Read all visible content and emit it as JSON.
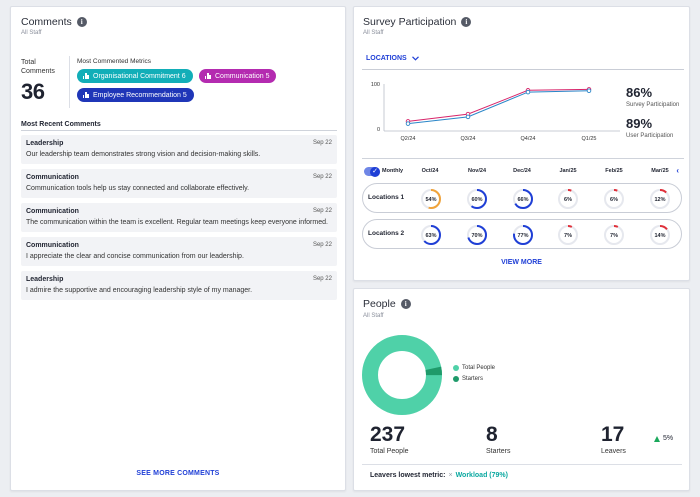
{
  "comments": {
    "title": "Comments",
    "subtitle": "All Staff",
    "total_label": "Total Comments",
    "total": "36",
    "most_commented_label": "Most Commented Metrics",
    "metrics": [
      {
        "label": "Organisational Commitment 6",
        "color": "#12aeb8"
      },
      {
        "label": "Communication 5",
        "color": "#b42bb0"
      },
      {
        "label": "Employee Recommendation 5",
        "color": "#1f36b8"
      }
    ],
    "recent_label": "Most Recent Comments",
    "items": [
      {
        "title": "Leadership",
        "date": "Sep 22",
        "text": "Our leadership team demonstrates strong vision and decision-making skills."
      },
      {
        "title": "Communication",
        "date": "Sep 22",
        "text": "Communication tools help us stay connected and collaborate effectively."
      },
      {
        "title": "Communication",
        "date": "Sep 22",
        "text": "The communication within the team is excellent. Regular team meetings keep everyone informed."
      },
      {
        "title": "Communication",
        "date": "Sep 22",
        "text": "I appreciate the clear and concise communication from our leadership."
      },
      {
        "title": "Leadership",
        "date": "Sep 22",
        "text": "I admire the supportive and encouraging leadership style of my manager."
      }
    ],
    "see_more": "SEE MORE COMMENTS"
  },
  "survey": {
    "title": "Survey Participation",
    "subtitle": "All Staff",
    "locations_label": "LOCATIONS",
    "chart": {
      "quarters": [
        "Q2/24",
        "Q3/24",
        "Q4/24",
        "Q1/25"
      ],
      "y_ticks": [
        "100",
        "0"
      ],
      "survey_values": [
        12,
        27,
        82,
        85
      ],
      "user_values": [
        17,
        33,
        86,
        88
      ],
      "survey_color": "#2a86c8",
      "user_color": "#d8256a"
    },
    "survey_pct": "86%",
    "survey_pct_label": "Survey Participation",
    "user_pct": "89%",
    "user_pct_label": "User Participation",
    "monthly_label": "Monthly",
    "months": [
      "Oct/24",
      "Nov/24",
      "Dec/24",
      "Jan/25",
      "Feb/25",
      "Mar/25"
    ],
    "locations": [
      {
        "name": "Locations 1",
        "values": [
          54,
          60,
          66,
          6,
          6,
          12
        ]
      },
      {
        "name": "Locations 2",
        "values": [
          63,
          70,
          77,
          7,
          7,
          14
        ]
      }
    ],
    "view_more": "VIEW MORE"
  },
  "people": {
    "title": "People",
    "subtitle": "All Staff",
    "legend": [
      {
        "label": "Total People",
        "color": "#4fd1a8"
      },
      {
        "label": "Starters",
        "color": "#1f9a6a"
      }
    ],
    "donut_fraction_starters": 0.034,
    "total": "237",
    "total_label": "Total People",
    "starters": "8",
    "starters_label": "Starters",
    "leavers": "17",
    "leavers_label": "Leavers",
    "delta": "5%",
    "leavers_metric_label": "Leavers lowest metric:",
    "leavers_metric_value": "Workload (79%)"
  }
}
